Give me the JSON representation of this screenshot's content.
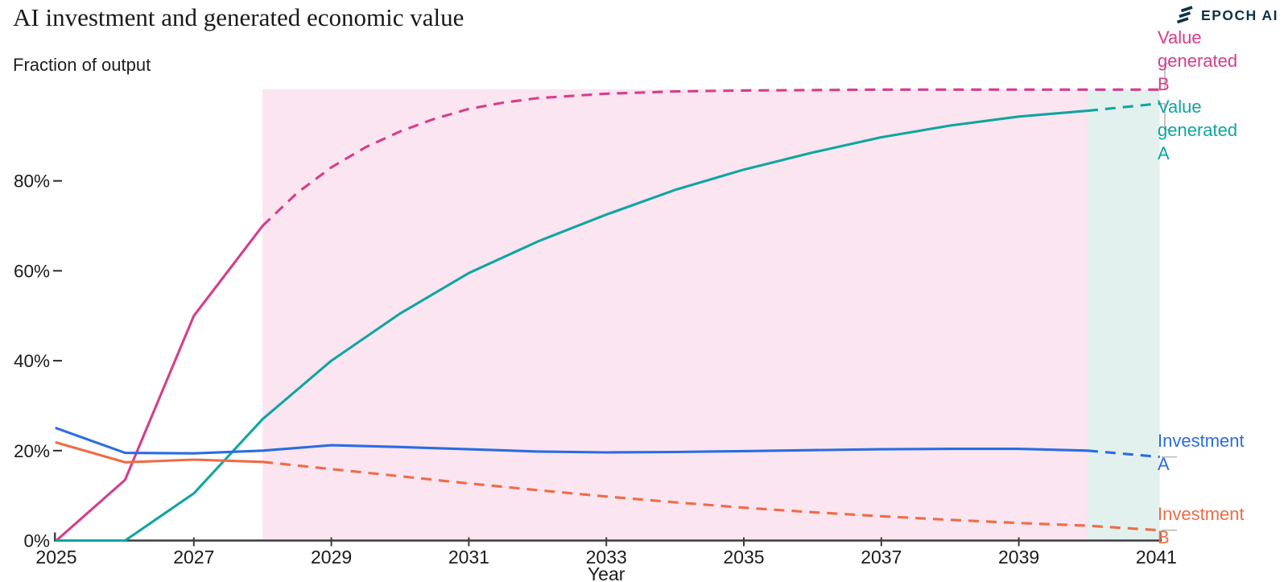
{
  "header": {
    "title": "AI investment and generated economic value",
    "subtitle": "Fraction of output",
    "brand": "EPOCH AI"
  },
  "chart_data": {
    "type": "line",
    "title": "AI investment and generated economic value",
    "xlabel": "Year",
    "ylabel": "Fraction of output",
    "xlim": [
      2025,
      2041.05
    ],
    "ylim": [
      0,
      102
    ],
    "grid": false,
    "legend_position": "right",
    "x_ticks": [
      2025,
      2027,
      2029,
      2031,
      2033,
      2035,
      2037,
      2039,
      2041
    ],
    "y_ticks": [
      {
        "value": 0,
        "label": "0%"
      },
      {
        "value": 20,
        "label": "20%"
      },
      {
        "value": 40,
        "label": "40%"
      },
      {
        "value": 60,
        "label": "60%"
      },
      {
        "value": 80,
        "label": "80%"
      }
    ],
    "regions": [
      {
        "name": "region-projection-b",
        "x0": 2028,
        "x1": 2040,
        "y0": 0,
        "y1": 100.35,
        "color": "#fae5f0"
      },
      {
        "name": "region-projection-a",
        "x0": 2040,
        "x1": 2041.05,
        "y0": 0,
        "y1": 100.35,
        "color": "#e2f1ee"
      }
    ],
    "series": [
      {
        "name": "Value generated B",
        "color": "#d63d8a",
        "dash_from": 2028,
        "points": [
          [
            2025,
            0
          ],
          [
            2026,
            13.5
          ],
          [
            2027,
            50
          ],
          [
            2028,
            70
          ],
          [
            2028.5,
            77.3
          ],
          [
            2029,
            83
          ],
          [
            2029.5,
            87.5
          ],
          [
            2030,
            91
          ],
          [
            2030.5,
            93.8
          ],
          [
            2031,
            96
          ],
          [
            2031.5,
            97.4
          ],
          [
            2032,
            98.4
          ],
          [
            2033,
            99.4
          ],
          [
            2034,
            99.9
          ],
          [
            2035,
            100.1
          ],
          [
            2036,
            100.2
          ],
          [
            2037,
            100.3
          ],
          [
            2038,
            100.3
          ],
          [
            2039,
            100.3
          ],
          [
            2040,
            100.3
          ],
          [
            2041.05,
            100.3
          ]
        ]
      },
      {
        "name": "Value generated A",
        "color": "#0fa5a1",
        "dash_from": 2040,
        "points": [
          [
            2025,
            0
          ],
          [
            2026,
            0
          ],
          [
            2027,
            10.5
          ],
          [
            2028,
            27
          ],
          [
            2029,
            40
          ],
          [
            2030,
            50.5
          ],
          [
            2031,
            59.5
          ],
          [
            2032,
            66.5
          ],
          [
            2033,
            72.5
          ],
          [
            2034,
            78
          ],
          [
            2035,
            82.5
          ],
          [
            2036,
            86.3
          ],
          [
            2037,
            89.7
          ],
          [
            2038,
            92.3
          ],
          [
            2039,
            94.3
          ],
          [
            2040,
            95.6
          ],
          [
            2041.05,
            97.2
          ]
        ]
      },
      {
        "name": "Investment A",
        "color": "#2b6ce2",
        "dash_from": 2040,
        "points": [
          [
            2025,
            25
          ],
          [
            2026,
            19.5
          ],
          [
            2027,
            19.4
          ],
          [
            2028,
            20
          ],
          [
            2029,
            21.2
          ],
          [
            2030,
            20.8
          ],
          [
            2031,
            20.3
          ],
          [
            2032,
            19.8
          ],
          [
            2033,
            19.6
          ],
          [
            2034,
            19.7
          ],
          [
            2035,
            19.9
          ],
          [
            2036,
            20.1
          ],
          [
            2037,
            20.3
          ],
          [
            2038,
            20.4
          ],
          [
            2039,
            20.4
          ],
          [
            2040,
            20
          ],
          [
            2041.05,
            18.6
          ]
        ]
      },
      {
        "name": "Investment B",
        "color": "#ee6c47",
        "dash_from": 2028,
        "points": [
          [
            2025,
            21.8
          ],
          [
            2026,
            17.4
          ],
          [
            2027,
            18
          ],
          [
            2028,
            17.5
          ],
          [
            2029,
            15.9
          ],
          [
            2030,
            14.3
          ],
          [
            2031,
            12.7
          ],
          [
            2032,
            11.2
          ],
          [
            2033,
            9.8
          ],
          [
            2034,
            8.5
          ],
          [
            2035,
            7.3
          ],
          [
            2036,
            6.3
          ],
          [
            2037,
            5.4
          ],
          [
            2038,
            4.6
          ],
          [
            2039,
            3.9
          ],
          [
            2040,
            3.3
          ],
          [
            2041.05,
            2.3
          ]
        ]
      }
    ]
  }
}
